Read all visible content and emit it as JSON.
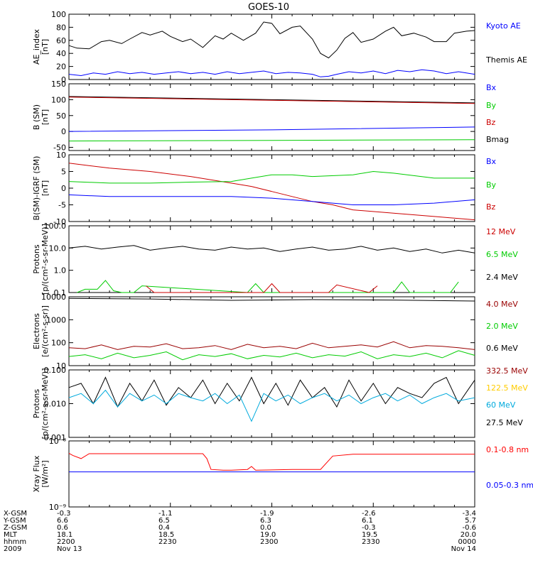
{
  "title": "GOES-10",
  "chart_data": [
    {
      "type": "line",
      "ylabel": [
        "AE_index",
        "[nT]"
      ],
      "ylim": [
        0,
        100
      ],
      "yticks": [
        "0",
        "20",
        "40",
        "60",
        "80",
        "100"
      ],
      "legend": [
        {
          "label": "Kyoto AE",
          "color": "#0000ff"
        },
        {
          "label": "Themis AE",
          "color": "#000000"
        }
      ],
      "series": [
        {
          "name": "Themis AE",
          "color": "#000000",
          "x": [
            0,
            2,
            5,
            8,
            10,
            13,
            15,
            18,
            20,
            23,
            25,
            28,
            30,
            33,
            36,
            38,
            40,
            43,
            46,
            48,
            50,
            52,
            55,
            57,
            60,
            62,
            64,
            66,
            68,
            70,
            72,
            75,
            78,
            80,
            82,
            85,
            88,
            90,
            93,
            95,
            98,
            100
          ],
          "values": [
            52,
            48,
            47,
            58,
            60,
            55,
            62,
            72,
            68,
            74,
            66,
            58,
            62,
            49,
            67,
            62,
            71,
            60,
            71,
            88,
            86,
            70,
            80,
            82,
            62,
            40,
            33,
            45,
            63,
            72,
            57,
            62,
            74,
            80,
            67,
            71,
            65,
            58,
            58,
            71,
            74,
            75
          ]
        },
        {
          "name": "Kyoto AE",
          "color": "#0000ff",
          "x": [
            0,
            3,
            6,
            9,
            12,
            15,
            18,
            21,
            24,
            27,
            30,
            33,
            36,
            39,
            42,
            45,
            48,
            51,
            54,
            57,
            60,
            62,
            64,
            66,
            69,
            72,
            75,
            78,
            81,
            84,
            87,
            90,
            93,
            96,
            100
          ],
          "values": [
            8,
            6,
            10,
            8,
            12,
            9,
            11,
            8,
            10,
            12,
            9,
            11,
            8,
            12,
            9,
            11,
            13,
            9,
            11,
            10,
            8,
            4,
            5,
            8,
            12,
            10,
            13,
            9,
            14,
            12,
            15,
            13,
            9,
            12,
            8
          ]
        }
      ]
    },
    {
      "type": "line",
      "ylabel": [
        "B (SM)",
        "[nT]"
      ],
      "ylim": [
        -60,
        150
      ],
      "yticks": [
        "-50",
        "0",
        "50",
        "100",
        "150"
      ],
      "legend": [
        {
          "label": "Bx",
          "color": "#0000ff"
        },
        {
          "label": "By",
          "color": "#00cc00"
        },
        {
          "label": "Bz",
          "color": "#cc0000"
        },
        {
          "label": "Bmag",
          "color": "#000000"
        }
      ],
      "series": [
        {
          "name": "Bmag",
          "color": "#000000",
          "x": [
            0,
            50,
            100
          ],
          "values": [
            110,
            100,
            90
          ]
        },
        {
          "name": "Bz",
          "color": "#cc0000",
          "x": [
            0,
            50,
            100
          ],
          "values": [
            108,
            98,
            88
          ]
        },
        {
          "name": "Bx",
          "color": "#0000ff",
          "x": [
            0,
            50,
            100
          ],
          "values": [
            0,
            5,
            14
          ]
        },
        {
          "name": "By",
          "color": "#00cc00",
          "x": [
            0,
            50,
            100
          ],
          "values": [
            -30,
            -28,
            -26
          ]
        }
      ]
    },
    {
      "type": "line",
      "ylabel": [
        "B(SM)-IGRF (SM)",
        "[nT]"
      ],
      "ylim": [
        -10,
        10
      ],
      "yticks": [
        "-10",
        "-5",
        "0",
        "5",
        "10"
      ],
      "legend": [
        {
          "label": "Bx",
          "color": "#0000ff"
        },
        {
          "label": "By",
          "color": "#00cc00"
        },
        {
          "label": "Bz",
          "color": "#cc0000"
        }
      ],
      "series": [
        {
          "name": "Bz",
          "color": "#cc0000",
          "x": [
            0,
            10,
            20,
            30,
            40,
            45,
            50,
            55,
            60,
            65,
            70,
            80,
            90,
            95,
            100
          ],
          "values": [
            7.5,
            6,
            5,
            3.5,
            1.5,
            0.5,
            -1,
            -2.5,
            -4,
            -5,
            -6.5,
            -7.5,
            -8.5,
            -9,
            -9.5
          ]
        },
        {
          "name": "By",
          "color": "#00cc00",
          "x": [
            0,
            10,
            20,
            30,
            40,
            45,
            50,
            55,
            60,
            70,
            75,
            80,
            90,
            100
          ],
          "values": [
            2,
            1.5,
            1.5,
            1.8,
            2,
            3,
            4,
            4,
            3.5,
            4,
            5,
            4.5,
            3,
            3
          ]
        },
        {
          "name": "Bx",
          "color": "#0000ff",
          "x": [
            0,
            10,
            20,
            30,
            40,
            50,
            60,
            70,
            80,
            90,
            100
          ],
          "values": [
            -2,
            -2.5,
            -2.5,
            -2.5,
            -2.5,
            -3,
            -4,
            -5,
            -5,
            -4.5,
            -3.5
          ]
        }
      ]
    },
    {
      "type": "line",
      "scale": "log",
      "ylabel": [
        "Protons",
        "[p/(cm²-s-sr-MeV)]"
      ],
      "ylim": [
        0.1,
        100
      ],
      "yticks": [
        "0.1",
        "1.0",
        "10.0",
        "100.0"
      ],
      "legend": [
        {
          "label": "12 MeV",
          "color": "#cc0000"
        },
        {
          "label": "6.5 MeV",
          "color": "#00cc00"
        },
        {
          "label": "2.4 MeV",
          "color": "#000000"
        }
      ],
      "series": [
        {
          "name": "2.4 MeV",
          "color": "#000000",
          "x": [
            0,
            4,
            8,
            12,
            16,
            20,
            24,
            28,
            32,
            36,
            40,
            44,
            48,
            52,
            56,
            60,
            64,
            68,
            72,
            76,
            80,
            84,
            88,
            92,
            96,
            100
          ],
          "values": [
            10,
            12,
            9,
            11,
            13,
            8,
            10,
            12,
            9,
            8,
            11,
            9,
            10,
            7,
            9,
            11,
            8,
            9,
            12,
            8,
            10,
            7,
            9,
            6,
            8,
            6
          ]
        },
        {
          "name": "6.5 MeV",
          "color": "#00cc00",
          "x": [
            2,
            4,
            7,
            9,
            11,
            13,
            16,
            18,
            44,
            46,
            48,
            80,
            82,
            84,
            94,
            96
          ],
          "values": [
            0.1,
            0.14,
            0.14,
            0.35,
            0.12,
            0.1,
            0.1,
            0.2,
            0.1,
            0.25,
            0.1,
            0.1,
            0.3,
            0.1,
            0.1,
            0.3
          ]
        },
        {
          "name": "12 MeV",
          "color": "#cc0000",
          "x": [
            19,
            21,
            48,
            50,
            52,
            64,
            66,
            74,
            76
          ],
          "values": [
            0.2,
            0.1,
            0.1,
            0.25,
            0.1,
            0.1,
            0.22,
            0.1,
            0.2
          ]
        }
      ]
    },
    {
      "type": "line",
      "scale": "log",
      "ylabel": [
        "Electrons",
        "[e/(cm²-s-sr)]"
      ],
      "ylim": [
        10,
        10000
      ],
      "yticks": [
        "10",
        "100",
        "1000",
        "10000"
      ],
      "legend": [
        {
          "label": "4.0 MeV",
          "color": "#990000"
        },
        {
          "label": "2.0 MeV",
          "color": "#00cc00"
        },
        {
          "label": "0.6 MeV",
          "color": "#000000"
        }
      ],
      "series": [
        {
          "name": "0.6 MeV",
          "color": "#000000",
          "x": [
            0,
            20,
            40,
            60,
            80,
            100
          ],
          "values": [
            8500,
            8000,
            7000,
            7500,
            7200,
            6500
          ]
        },
        {
          "name": "4.0 MeV",
          "color": "#990000",
          "x": [
            0,
            4,
            8,
            12,
            16,
            20,
            24,
            28,
            32,
            36,
            40,
            44,
            48,
            52,
            56,
            60,
            64,
            68,
            72,
            76,
            80,
            84,
            88,
            92,
            96,
            100
          ],
          "values": [
            60,
            55,
            80,
            50,
            70,
            65,
            90,
            55,
            60,
            75,
            50,
            85,
            60,
            70,
            55,
            95,
            60,
            70,
            80,
            65,
            110,
            60,
            75,
            70,
            60,
            50
          ]
        },
        {
          "name": "2.0 MeV",
          "color": "#00cc00",
          "x": [
            0,
            4,
            8,
            12,
            16,
            20,
            24,
            28,
            32,
            36,
            40,
            44,
            48,
            52,
            56,
            60,
            64,
            68,
            72,
            76,
            80,
            84,
            88,
            92,
            96,
            100
          ],
          "values": [
            25,
            30,
            20,
            35,
            22,
            28,
            40,
            18,
            30,
            25,
            33,
            20,
            28,
            24,
            35,
            22,
            30,
            26,
            40,
            20,
            30,
            25,
            35,
            22,
            45,
            28
          ]
        }
      ]
    },
    {
      "type": "line",
      "scale": "log",
      "ylabel": [
        "Protons",
        "[p/(cm²-s-sr-MeV)]"
      ],
      "ylim": [
        0.001,
        0.1
      ],
      "yticks": [
        "0.001",
        "0.010",
        "0.100"
      ],
      "legend": [
        {
          "label": "332.5 MeV",
          "color": "#990000"
        },
        {
          "label": "122.5 MeV",
          "color": "#ffcc00"
        },
        {
          "label": "60 MeV",
          "color": "#00aadd"
        },
        {
          "label": "27.5 MeV",
          "color": "#000000"
        }
      ],
      "series": [
        {
          "name": "27.5 MeV",
          "color": "#000000",
          "x": [
            0,
            3,
            6,
            9,
            12,
            15,
            18,
            21,
            24,
            27,
            30,
            33,
            36,
            39,
            42,
            45,
            48,
            51,
            54,
            57,
            60,
            63,
            66,
            69,
            72,
            75,
            78,
            81,
            84,
            87,
            90,
            93,
            96,
            100
          ],
          "values": [
            0.03,
            0.04,
            0.01,
            0.06,
            0.008,
            0.04,
            0.012,
            0.05,
            0.009,
            0.03,
            0.015,
            0.05,
            0.01,
            0.04,
            0.012,
            0.06,
            0.01,
            0.04,
            0.009,
            0.05,
            0.015,
            0.03,
            0.008,
            0.05,
            0.012,
            0.04,
            0.01,
            0.03,
            0.02,
            0.015,
            0.04,
            0.06,
            0.01,
            0.05
          ]
        },
        {
          "name": "60 MeV",
          "color": "#00aadd",
          "x": [
            0,
            3,
            6,
            9,
            12,
            15,
            18,
            21,
            24,
            27,
            30,
            33,
            36,
            39,
            42,
            45,
            48,
            51,
            54,
            57,
            60,
            63,
            66,
            69,
            72,
            75,
            78,
            81,
            84,
            87,
            90,
            93,
            96,
            100
          ],
          "values": [
            0.015,
            0.02,
            0.01,
            0.025,
            0.008,
            0.02,
            0.012,
            0.018,
            0.01,
            0.02,
            0.015,
            0.012,
            0.02,
            0.01,
            0.018,
            0.003,
            0.02,
            0.012,
            0.018,
            0.01,
            0.015,
            0.02,
            0.012,
            0.018,
            0.01,
            0.015,
            0.02,
            0.012,
            0.018,
            0.01,
            0.015,
            0.02,
            0.012,
            0.015
          ]
        }
      ]
    },
    {
      "type": "line",
      "scale": "log",
      "ylabel": [
        "Xray Flux",
        "[W/m²]"
      ],
      "ylim": [
        1e-09,
        1e-08
      ],
      "yticks": [
        "10⁻⁹",
        "10⁻⁸"
      ],
      "legend": [
        {
          "label": "0.1-0.8 nm",
          "color": "#ff0000"
        },
        {
          "label": "0.05-0.3 nm",
          "color": "#0000ff"
        }
      ],
      "series": [
        {
          "name": "0.1-0.8 nm",
          "color": "#ff0000",
          "x": [
            0,
            1,
            3,
            5,
            8,
            20,
            33,
            34,
            35,
            38,
            40,
            44,
            45,
            46,
            55,
            62,
            65,
            70,
            75,
            100
          ],
          "values": [
            6.5e-09,
            6e-09,
            5.4e-09,
            6.4e-09,
            6.4e-09,
            6.4e-09,
            6.4e-09,
            5.4e-09,
            3.7e-09,
            3.6e-09,
            3.6e-09,
            3.7e-09,
            4.1e-09,
            3.6e-09,
            3.7e-09,
            3.7e-09,
            5.9e-09,
            6.3e-09,
            6.3e-09,
            6.3e-09
          ]
        },
        {
          "name": "0.05-0.3 nm",
          "color": "#0000ff",
          "x": [
            0,
            100
          ],
          "values": [
            3.4e-09,
            3.4e-09
          ]
        }
      ]
    }
  ],
  "axis_table": {
    "rows": [
      {
        "label": "X-GSM",
        "values": [
          "-0.3",
          "-1.1",
          "-1.9",
          "-2.6",
          "-3.4"
        ]
      },
      {
        "label": "Y-GSM",
        "values": [
          "6.6",
          "6.5",
          "6.3",
          "6.1",
          "5.7"
        ]
      },
      {
        "label": "Z-GSM",
        "values": [
          "0.6",
          "0.4",
          "0.0",
          "-0.3",
          "-0.6"
        ]
      },
      {
        "label": "MLT",
        "values": [
          "18.1",
          "18.5",
          "19.0",
          "19.5",
          "20.0"
        ]
      },
      {
        "label": "hhmm",
        "values": [
          "2200",
          "2230",
          "2300",
          "2330",
          "0000"
        ]
      },
      {
        "label": "2009",
        "values": [
          "Nov 13",
          "",
          "",
          "",
          "Nov 14"
        ]
      }
    ]
  }
}
